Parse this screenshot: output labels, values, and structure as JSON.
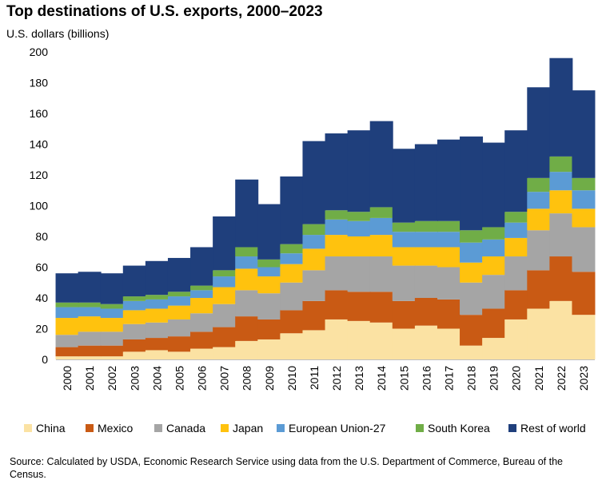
{
  "title": "Top destinations of U.S. exports, 2000–2023",
  "source": "Source: Calculated by USDA, Economic Research Service using data from the U.S. Department of Commerce, Bureau of the Census.",
  "chart_data": {
    "type": "bar",
    "stacked": true,
    "title": "Top destinations of U.S. exports, 2000–2023",
    "ylabel": "U.S. dollars (billions)",
    "xlabel": "",
    "ylim": [
      0,
      200
    ],
    "yticks": [
      "0",
      "20",
      "40",
      "60",
      "80",
      "100",
      "120",
      "140",
      "160",
      "180",
      "200"
    ],
    "grid": false,
    "legend_position": "bottom",
    "categories": [
      "2000",
      "2001",
      "2002",
      "2003",
      "2004",
      "2005",
      "2006",
      "2007",
      "2008",
      "2009",
      "2010",
      "2011",
      "2012",
      "2013",
      "2014",
      "2015",
      "2016",
      "2017",
      "2018",
      "2019",
      "2020",
      "2021",
      "2022",
      "2023"
    ],
    "series": [
      {
        "name": "China",
        "color": "#FBE2A3",
        "values": [
          2,
          2,
          2,
          5,
          6,
          5,
          7,
          8,
          12,
          13,
          17,
          19,
          26,
          25,
          24,
          20,
          22,
          20,
          9,
          14,
          26,
          33,
          38,
          29
        ]
      },
      {
        "name": "Mexico",
        "color": "#C95A14",
        "values": [
          6,
          7,
          7,
          8,
          8,
          10,
          11,
          13,
          16,
          13,
          15,
          19,
          19,
          19,
          20,
          18,
          18,
          19,
          20,
          19,
          19,
          25,
          29,
          28
        ]
      },
      {
        "name": "Canada",
        "color": "#A5A5A5",
        "values": [
          8,
          9,
          9,
          10,
          10,
          11,
          12,
          15,
          17,
          17,
          18,
          20,
          22,
          23,
          23,
          23,
          21,
          21,
          21,
          22,
          22,
          26,
          28,
          29
        ]
      },
      {
        "name": "Japan",
        "color": "#FFC20E",
        "values": [
          11,
          10,
          9,
          9,
          9,
          9,
          10,
          11,
          14,
          11,
          12,
          14,
          14,
          13,
          14,
          12,
          12,
          13,
          13,
          12,
          12,
          14,
          15,
          12
        ]
      },
      {
        "name": "European Union-27",
        "color": "#5B9BD5",
        "values": [
          7,
          6,
          6,
          6,
          6,
          6,
          5,
          7,
          8,
          6,
          7,
          9,
          10,
          10,
          11,
          10,
          10,
          10,
          13,
          11,
          10,
          11,
          12,
          12
        ]
      },
      {
        "name": "South Korea",
        "color": "#70AD47",
        "values": [
          3,
          3,
          3,
          3,
          3,
          3,
          3,
          4,
          6,
          5,
          6,
          7,
          6,
          6,
          7,
          6,
          7,
          7,
          8,
          8,
          7,
          9,
          10,
          8
        ]
      },
      {
        "name": "Rest of world",
        "color": "#1F3F7C",
        "values": [
          19,
          20,
          20,
          20,
          22,
          22,
          25,
          35,
          44,
          36,
          44,
          54,
          50,
          53,
          56,
          48,
          50,
          53,
          61,
          55,
          53,
          59,
          64,
          57
        ]
      }
    ]
  }
}
